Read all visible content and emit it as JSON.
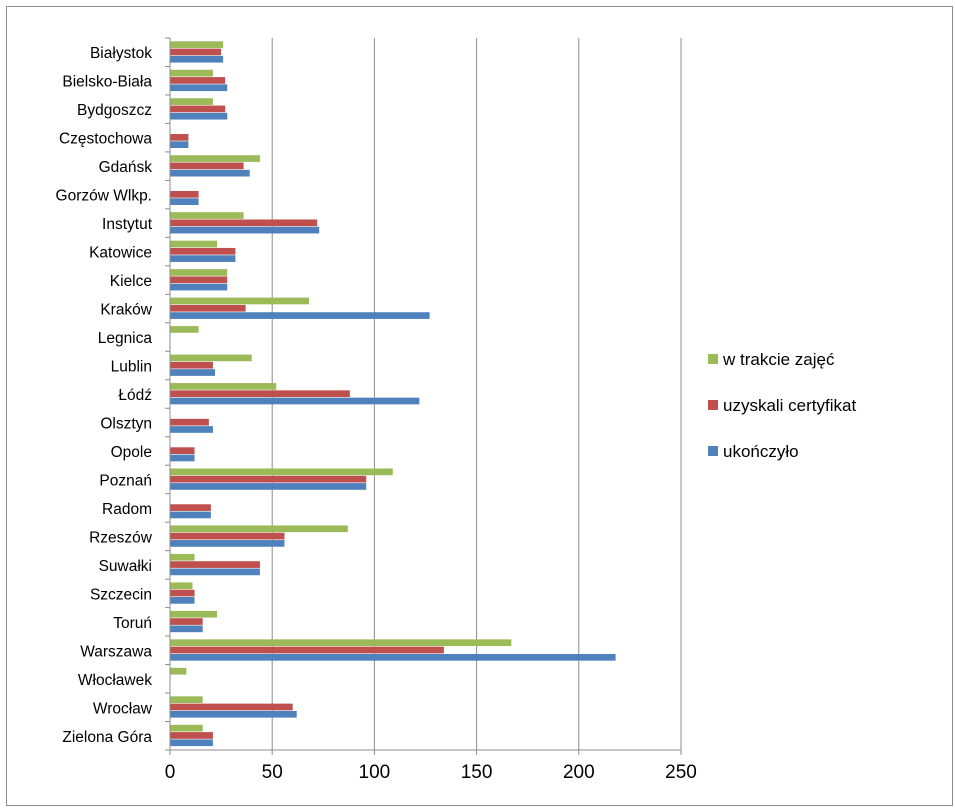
{
  "chart_data": {
    "type": "bar",
    "orientation": "horizontal",
    "title": "",
    "xlabel": "",
    "ylabel": "",
    "xlim": [
      0,
      250
    ],
    "x_ticks": [
      0,
      50,
      100,
      150,
      200,
      250
    ],
    "grid": "vertical",
    "legend_position": "right",
    "categories": [
      "Białystok",
      "Bielsko-Biała",
      "Bydgoszcz",
      "Częstochowa",
      "Gdańsk",
      "Gorzów Wlkp.",
      "Instytut",
      "Katowice",
      "Kielce",
      "Kraków",
      "Legnica",
      "Lublin",
      "Łódź",
      "Olsztyn",
      "Opole",
      "Poznań",
      "Radom",
      "Rzeszów",
      "Suwałki",
      "Szczecin",
      "Toruń",
      "Warszawa",
      "Włocławek",
      "Wrocław",
      "Zielona Góra"
    ],
    "series": [
      {
        "name": "w trakcie zajęć",
        "color": "#9bbb59",
        "values": [
          26,
          21,
          21,
          0,
          44,
          0,
          36,
          23,
          28,
          68,
          14,
          40,
          52,
          0,
          0,
          109,
          0,
          87,
          12,
          11,
          23,
          167,
          8,
          16,
          16
        ]
      },
      {
        "name": "uzyskali certyfikat",
        "color": "#c0504d",
        "values": [
          25,
          27,
          27,
          9,
          36,
          14,
          72,
          32,
          28,
          37,
          0,
          21,
          88,
          19,
          12,
          96,
          20,
          56,
          44,
          12,
          16,
          134,
          0,
          60,
          21
        ]
      },
      {
        "name": "ukończyło",
        "color": "#4f81bd",
        "values": [
          26,
          28,
          28,
          9,
          39,
          14,
          73,
          32,
          28,
          127,
          0,
          22,
          122,
          21,
          12,
          96,
          20,
          56,
          44,
          12,
          16,
          218,
          0,
          62,
          21
        ]
      }
    ],
    "legend_order": [
      "w trakcie zajęć",
      "uzyskali certyfikat",
      "ukończyło"
    ]
  }
}
